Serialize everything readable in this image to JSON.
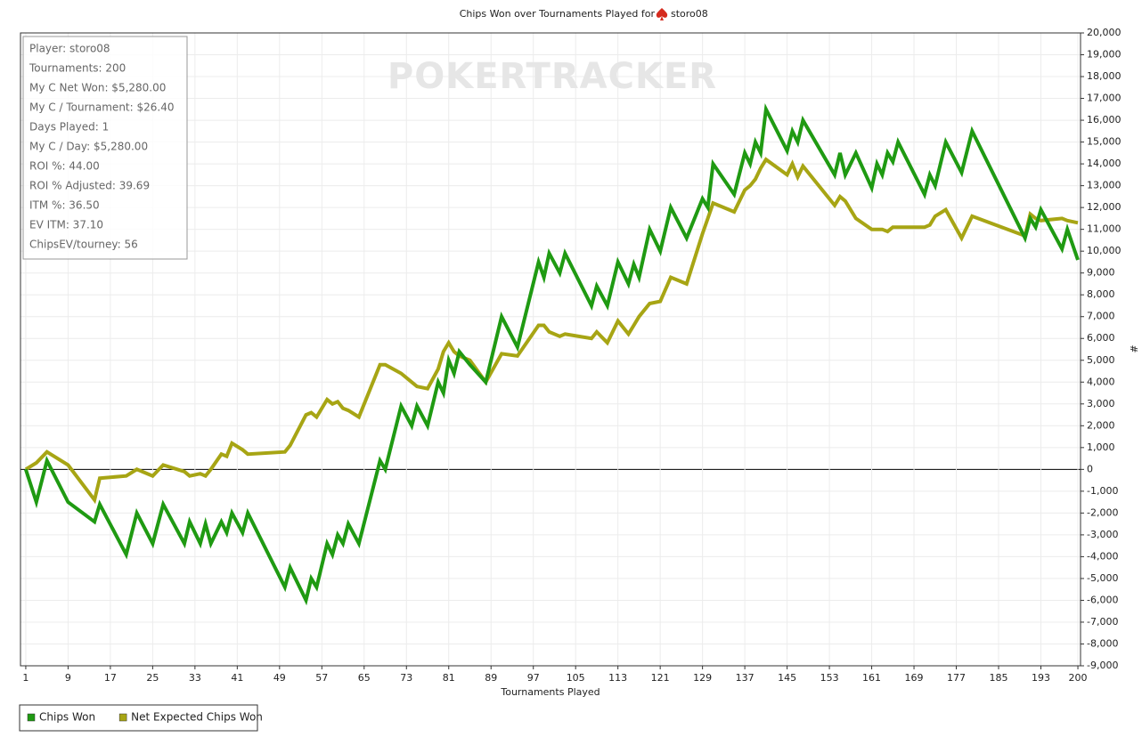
{
  "chart_data": {
    "type": "line",
    "title": "Chips Won over Tournaments Played for",
    "title_player": "storo08",
    "watermark": "POKERTRACKER",
    "x_label": "Tournaments Played",
    "y_label": "#",
    "stats": [
      "Player: storo08",
      "Tournaments: 200",
      "My C Net Won: $5,280.00",
      "My C / Tournament: $26.40",
      "Days Played: 1",
      "My C / Day: $5,280.00",
      "ROI %: 44.00",
      "ROI % Adjusted: 39.69",
      "ITM %: 36.50",
      "EV ITM: 37.10",
      "ChipsEV/tourney: 56"
    ],
    "grid": true,
    "legend": "bottom-left",
    "x": [
      1,
      3,
      5,
      9,
      14,
      15,
      20,
      22,
      25,
      27,
      31,
      32,
      34,
      35,
      36,
      38,
      39,
      40,
      42,
      43,
      50,
      51,
      54,
      55,
      56,
      58,
      59,
      60,
      61,
      62,
      64,
      68,
      69,
      72,
      74,
      75,
      77,
      79,
      80,
      81,
      82,
      83,
      85,
      88,
      91,
      94,
      98,
      99,
      100,
      102,
      103,
      108,
      109,
      111,
      113,
      115,
      116,
      117,
      119,
      121,
      123,
      126,
      129,
      130,
      131,
      135,
      137,
      138,
      139,
      140,
      141,
      145,
      146,
      147,
      148,
      154,
      155,
      156,
      158,
      161,
      162,
      163,
      164,
      165,
      166,
      171,
      172,
      173,
      175,
      178,
      180,
      190,
      191,
      192,
      193,
      197,
      198,
      200
    ],
    "series": [
      {
        "name": "Chips Won",
        "color": "#1f9a12",
        "values": [
          0,
          -1500,
          400,
          -1500,
          -2400,
          -1600,
          -3900,
          -2000,
          -3400,
          -1600,
          -3400,
          -2400,
          -3400,
          -2500,
          -3400,
          -2400,
          -2900,
          -2000,
          -2900,
          -2000,
          -5400,
          -4500,
          -6000,
          -5000,
          -5400,
          -3400,
          -3900,
          -3000,
          -3400,
          -2500,
          -3400,
          400,
          0,
          2900,
          2000,
          2900,
          2000,
          4000,
          3500,
          5000,
          4400,
          5400,
          4800,
          4000,
          7000,
          5600,
          9500,
          8800,
          9900,
          9000,
          9900,
          7500,
          8400,
          7500,
          9500,
          8500,
          9400,
          8800,
          11000,
          10000,
          12000,
          10600,
          12400,
          12000,
          14000,
          12600,
          14500,
          14000,
          15000,
          14500,
          16500,
          14600,
          15500,
          15000,
          16000,
          13500,
          14500,
          13500,
          14500,
          12900,
          14000,
          13500,
          14500,
          14100,
          15000,
          12600,
          13500,
          13000,
          15000,
          13600,
          15500,
          10600,
          11500,
          11100,
          11900,
          10100,
          11000,
          9600
        ]
      },
      {
        "name": "Net Expected Chips Won",
        "color": "#a7a514",
        "values": [
          0,
          300,
          800,
          200,
          -1400,
          -400,
          -300,
          0,
          -300,
          200,
          -100,
          -300,
          -200,
          -300,
          0,
          700,
          600,
          1200,
          900,
          700,
          800,
          1100,
          2500,
          2600,
          2400,
          3200,
          3000,
          3100,
          2800,
          2700,
          2400,
          4800,
          4800,
          4400,
          4000,
          3800,
          3700,
          4600,
          5400,
          5800,
          5400,
          5200,
          5000,
          4000,
          5300,
          5200,
          6600,
          6600,
          6300,
          6100,
          6200,
          6000,
          6300,
          5800,
          6800,
          6200,
          6600,
          7000,
          7600,
          7700,
          8800,
          8500,
          10800,
          11500,
          12200,
          11800,
          12800,
          13000,
          13300,
          13800,
          14200,
          13500,
          14000,
          13400,
          13900,
          12100,
          12500,
          12300,
          11500,
          11000,
          11000,
          11000,
          10900,
          11100,
          11100,
          11100,
          11200,
          11600,
          11900,
          10600,
          11600,
          10700,
          11700,
          11500,
          11400,
          11500,
          11400,
          11300
        ]
      }
    ],
    "xlim": [
      0,
      200.5
    ],
    "xticks": [
      1,
      9,
      17,
      25,
      33,
      41,
      49,
      57,
      65,
      73,
      81,
      89,
      97,
      105,
      113,
      121,
      129,
      137,
      145,
      153,
      161,
      169,
      177,
      185,
      193,
      200
    ],
    "ylim": [
      -9000,
      20000
    ],
    "yticks": [
      {
        "value": -9000,
        "label": "-9,000"
      },
      {
        "value": -8000,
        "label": "-8,000"
      },
      {
        "value": -7000,
        "label": "-7,000"
      },
      {
        "value": -6000,
        "label": "-6,000"
      },
      {
        "value": -5000,
        "label": "-5,000"
      },
      {
        "value": -4000,
        "label": "-4,000"
      },
      {
        "value": -3000,
        "label": "-3,000"
      },
      {
        "value": -2000,
        "label": "-2,000"
      },
      {
        "value": -1000,
        "label": "-1,000"
      },
      0,
      {
        "value": 1000,
        "label": "1,000"
      },
      {
        "value": 2000,
        "label": "2,000"
      },
      {
        "value": 3000,
        "label": "3,000"
      },
      {
        "value": 4000,
        "label": "4,000"
      },
      {
        "value": 5000,
        "label": "5,000"
      },
      {
        "value": 6000,
        "label": "6,000"
      },
      {
        "value": 7000,
        "label": "7,000"
      },
      {
        "value": 8000,
        "label": "8,000"
      },
      {
        "value": 9000,
        "label": "9,000"
      },
      {
        "value": 10000,
        "label": "10,000"
      },
      {
        "value": 11000,
        "label": "11,000"
      },
      {
        "value": 12000,
        "label": "12,000"
      },
      {
        "value": 13000,
        "label": "13,000"
      },
      {
        "value": 14000,
        "label": "14,000"
      },
      {
        "value": 15000,
        "label": "15,000"
      },
      {
        "value": 16000,
        "label": "16,000"
      },
      {
        "value": 17000,
        "label": "17,000"
      },
      {
        "value": 18000,
        "label": "18,000"
      },
      {
        "value": 19000,
        "label": "19,000"
      },
      {
        "value": 20000,
        "label": "20,000"
      }
    ]
  }
}
